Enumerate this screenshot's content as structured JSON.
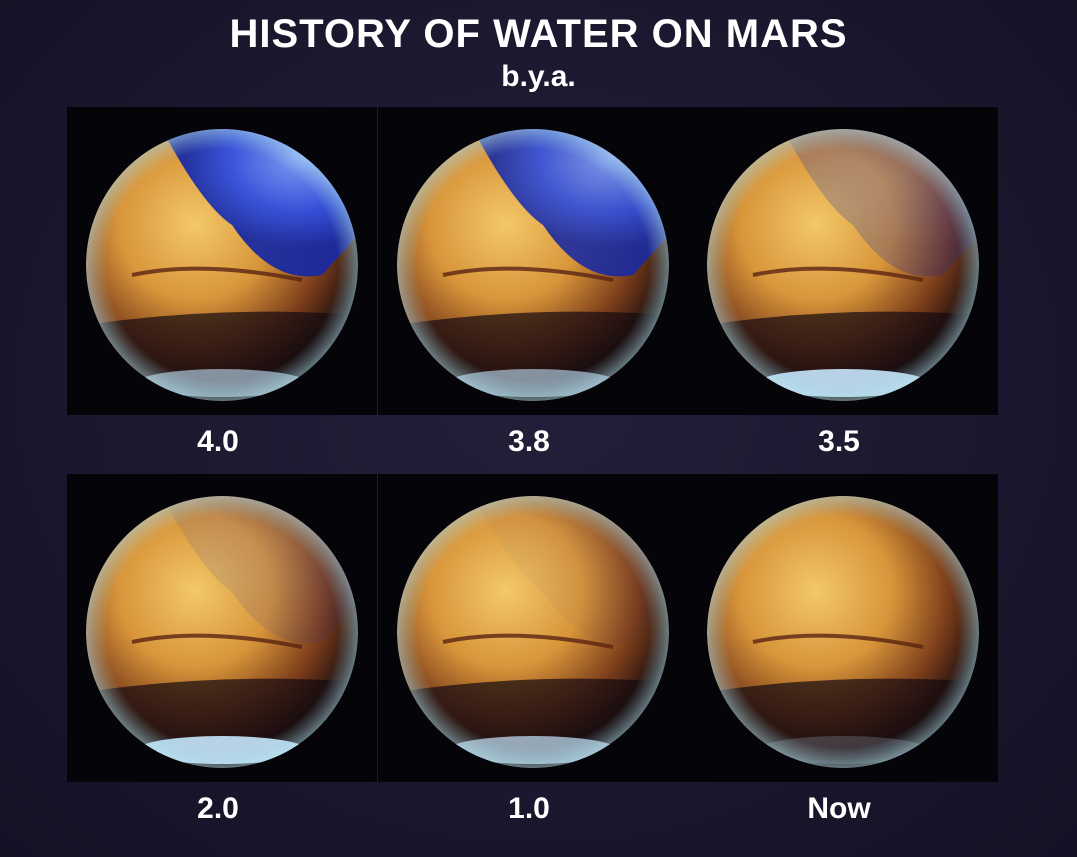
{
  "header": {
    "title": "HISTORY OF WATER ON MARS",
    "subtitle": "b.y.a."
  },
  "panels": [
    {
      "label": "4.0"
    },
    {
      "label": "3.8"
    },
    {
      "label": "3.5"
    },
    {
      "label": "2.0"
    },
    {
      "label": "1.0"
    },
    {
      "label": "Now"
    }
  ]
}
